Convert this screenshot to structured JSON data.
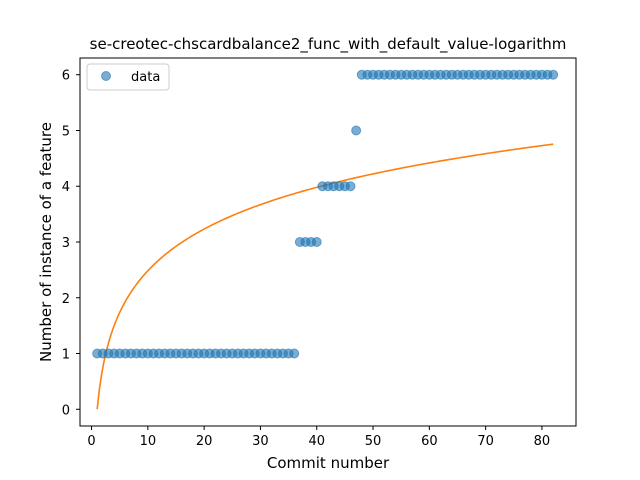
{
  "chart_data": {
    "type": "scatter",
    "title": "se-creotec-chscardbalance2_func_with_default_value-logarithm",
    "xlabel": "Commit number",
    "ylabel": "Number of instance of a feature",
    "xlim": [
      -2.05,
      86.05
    ],
    "ylim": [
      -0.3,
      6.3
    ],
    "xticks": [
      0,
      10,
      20,
      30,
      40,
      50,
      60,
      70,
      80
    ],
    "yticks": [
      0,
      1,
      2,
      3,
      4,
      5,
      6
    ],
    "grid": false,
    "legend": {
      "position": "top-left",
      "entries": [
        "data"
      ]
    },
    "series": [
      {
        "name": "data",
        "kind": "scatter",
        "color": "#1f77b4",
        "x": [
          1,
          2,
          3,
          4,
          5,
          6,
          7,
          8,
          9,
          10,
          11,
          12,
          13,
          14,
          15,
          16,
          17,
          18,
          19,
          20,
          21,
          22,
          23,
          24,
          25,
          26,
          27,
          28,
          29,
          30,
          31,
          32,
          33,
          34,
          35,
          36,
          37,
          38,
          39,
          40,
          41,
          42,
          43,
          44,
          45,
          46,
          47,
          48,
          49,
          50,
          51,
          52,
          53,
          54,
          55,
          56,
          57,
          58,
          59,
          60,
          61,
          62,
          63,
          64,
          65,
          66,
          67,
          68,
          69,
          70,
          71,
          72,
          73,
          74,
          75,
          76,
          77,
          78,
          79,
          80,
          81,
          82
        ],
        "y": [
          1,
          1,
          1,
          1,
          1,
          1,
          1,
          1,
          1,
          1,
          1,
          1,
          1,
          1,
          1,
          1,
          1,
          1,
          1,
          1,
          1,
          1,
          1,
          1,
          1,
          1,
          1,
          1,
          1,
          1,
          1,
          1,
          1,
          1,
          1,
          1,
          3,
          3,
          3,
          3,
          4,
          4,
          4,
          4,
          4,
          4,
          5,
          6,
          6,
          6,
          6,
          6,
          6,
          6,
          6,
          6,
          6,
          6,
          6,
          6,
          6,
          6,
          6,
          6,
          6,
          6,
          6,
          6,
          6,
          6,
          6,
          6,
          6,
          6,
          6,
          6,
          6,
          6,
          6,
          6,
          6,
          6
        ]
      },
      {
        "kind": "line",
        "color": "#ff7f0e",
        "fit": {
          "model": "logarithm",
          "a": 1.079,
          "b": 0.0,
          "x_range": [
            1,
            82
          ]
        }
      }
    ]
  }
}
